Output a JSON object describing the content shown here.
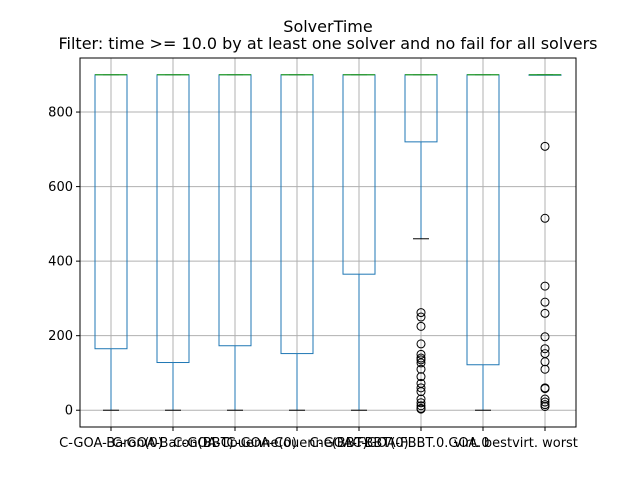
{
  "chart_data": {
    "type": "box",
    "title": "SolverTime",
    "subtitle": "Filter: time >= 10.0 by at least one solver and no fail for all solvers",
    "xlabel": "",
    "ylabel": "",
    "ylim": [
      -45,
      945
    ],
    "yticks": [
      0,
      200,
      400,
      600,
      800
    ],
    "grid": true,
    "categories": [
      "C-GOA-Baron(0)",
      "C-GOA-Baron(BBT)",
      "C-GOA-Couenne(0)",
      "C-GOA-Couenne(BBT)",
      "C-GOA-FBBT(0)",
      "C-GOA-FBBT.0.GOA.0",
      "virt. best",
      "virt. worst"
    ],
    "boxes": [
      {
        "whisker_low": 0,
        "q1": 165,
        "median": 900,
        "q3": 900,
        "whisker_high": 900,
        "outliers": []
      },
      {
        "whisker_low": 0,
        "q1": 128,
        "median": 900,
        "q3": 900,
        "whisker_high": 900,
        "outliers": []
      },
      {
        "whisker_low": 0,
        "q1": 173,
        "median": 900,
        "q3": 900,
        "whisker_high": 900,
        "outliers": []
      },
      {
        "whisker_low": 0,
        "q1": 152,
        "median": 900,
        "q3": 900,
        "whisker_high": 900,
        "outliers": []
      },
      {
        "whisker_low": 0,
        "q1": 365,
        "median": 900,
        "q3": 900,
        "whisker_high": 900,
        "outliers": []
      },
      {
        "whisker_low": 460,
        "q1": 720,
        "median": 900,
        "q3": 900,
        "whisker_high": 900,
        "outliers": [
          262,
          250,
          225,
          178,
          150,
          140,
          135,
          127,
          110,
          90,
          72,
          60,
          50,
          30,
          20,
          12,
          5,
          3
        ]
      },
      {
        "whisker_low": 0,
        "q1": 122,
        "median": 900,
        "q3": 900,
        "whisker_high": 900,
        "outliers": []
      },
      {
        "whisker_low": 900,
        "q1": 900,
        "median": 900,
        "q3": 900,
        "whisker_high": 900,
        "outliers": [
          708,
          515,
          333,
          290,
          260,
          197,
          165,
          152,
          130,
          110,
          60,
          58,
          30,
          22,
          15,
          10
        ]
      }
    ]
  },
  "colors": {
    "box": "#1f77b4",
    "median": "#2ca02c",
    "whisker_cap": "#000000",
    "grid": "#b0b0b0",
    "axis": "#000000"
  }
}
